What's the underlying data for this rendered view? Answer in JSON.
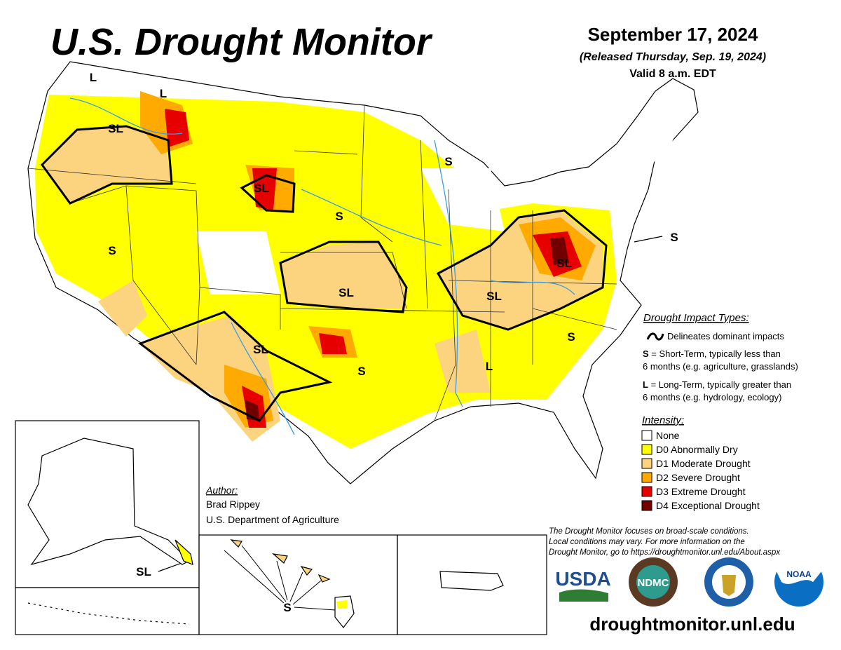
{
  "header": {
    "title": "U.S. Drought Monitor",
    "date": "September 17, 2024",
    "released": "(Released Thursday, Sep. 19, 2024)",
    "valid": "Valid 8 a.m. EDT"
  },
  "map_labels": [
    "L",
    "L",
    "SL",
    "SL",
    "S",
    "S",
    "S",
    "SL",
    "SL",
    "SL",
    "S",
    "SL",
    "S",
    "L",
    "S",
    "SL",
    "S"
  ],
  "impact_types": {
    "heading": "Drought Impact Types:",
    "delineates": "Delineates dominant impacts",
    "short_term": {
      "code": "S",
      "line1": " = Short-Term, typically less than",
      "line2": "6 months (e.g. agriculture, grasslands)"
    },
    "long_term": {
      "code": "L",
      "line1": " = Long-Term, typically greater than",
      "line2": "6 months (e.g. hydrology, ecology)"
    }
  },
  "intensity": {
    "heading": "Intensity:",
    "items": [
      {
        "label": "None",
        "color": "#ffffff"
      },
      {
        "label": "D0 Abnormally Dry",
        "color": "#ffff00"
      },
      {
        "label": "D1 Moderate Drought",
        "color": "#fcd37f"
      },
      {
        "label": "D2 Severe Drought",
        "color": "#ffaa00"
      },
      {
        "label": "D3 Extreme Drought",
        "color": "#e60000"
      },
      {
        "label": "D4 Exceptional Drought",
        "color": "#730000"
      }
    ]
  },
  "author": {
    "heading": "Author:",
    "name": "Brad Rippey",
    "org": "U.S. Department of Agriculture"
  },
  "disclaimer": [
    "The Drought Monitor focuses on broad-scale conditions.",
    "Local conditions may vary. For more information on the",
    "Drought Monitor, go to https://droughtmonitor.unl.edu/About.aspx"
  ],
  "logos": [
    "USDA",
    "NDMC",
    "NOAA"
  ],
  "url": "droughtmonitor.unl.edu"
}
